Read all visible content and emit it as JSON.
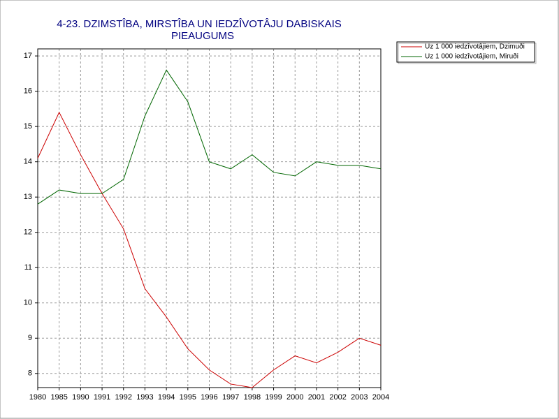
{
  "chart_data": {
    "type": "line",
    "title": [
      "4-23. DZIMSTÎBA, MIRSTÎBA UN IEDZÎVOTÂJU DABISKAIS",
      "PIEAUGUMS"
    ],
    "categories": [
      "1980",
      "1985",
      "1990",
      "1991",
      "1992",
      "1993",
      "1994",
      "1995",
      "1996",
      "1997",
      "1998",
      "1999",
      "2000",
      "2001",
      "2002",
      "2003",
      "2004"
    ],
    "series": [
      {
        "name": "Uz 1 000 iedzîvotâjiem, Dzimuði",
        "color": "#cc0000",
        "values": [
          14.1,
          15.4,
          14.2,
          13.1,
          12.1,
          10.4,
          9.6,
          8.7,
          8.1,
          7.7,
          7.6,
          8.1,
          8.5,
          8.3,
          8.6,
          9.0,
          8.8
        ]
      },
      {
        "name": "Uz 1 000 iedzîvotâjiem, Miruði",
        "color": "#006600",
        "values": [
          12.8,
          13.2,
          13.1,
          13.1,
          13.5,
          15.3,
          16.6,
          15.7,
          14.0,
          13.8,
          14.2,
          13.7,
          13.6,
          14.0,
          13.9,
          13.9,
          13.8
        ]
      }
    ],
    "ylim": [
      7.6,
      17.2
    ],
    "yticks": [
      8,
      9,
      10,
      11,
      12,
      13,
      14,
      15,
      16,
      17
    ],
    "grid": true
  }
}
